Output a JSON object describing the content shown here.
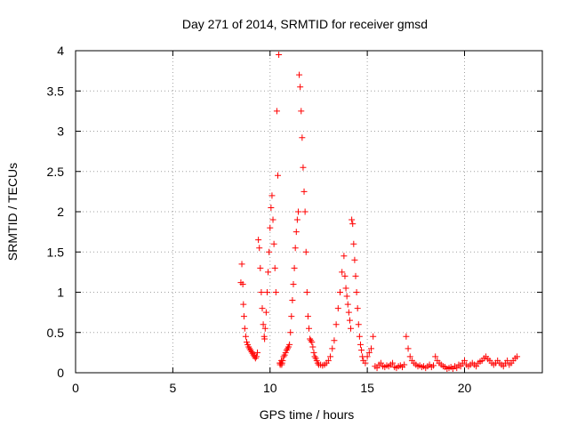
{
  "chart_data": {
    "type": "scatter",
    "title": "Day 271 of 2014, SRMTID for receiver gmsd",
    "xlabel": "GPS time / hours",
    "ylabel": "SRMTID / TECUs",
    "xlim": [
      0,
      24
    ],
    "ylim": [
      0,
      4
    ],
    "xticks": [
      0,
      5,
      10,
      15,
      20
    ],
    "yticks": [
      0,
      0.5,
      1,
      1.5,
      2,
      2.5,
      3,
      3.5,
      4
    ],
    "xtick_labels": [
      "0",
      "5",
      "10",
      "15",
      "20"
    ],
    "ytick_labels": [
      "0",
      "0.5",
      "1",
      "1.5",
      "2",
      "2.5",
      "3",
      "3.5",
      "4"
    ],
    "grid": true,
    "marker": "+",
    "color": "#ff0000",
    "series": [
      {
        "name": "gmsd",
        "x": [
          8.5,
          8.55,
          8.6,
          8.63,
          8.66,
          8.7,
          8.75,
          8.8,
          8.85,
          8.9,
          8.95,
          9.0,
          9.05,
          9.1,
          9.15,
          9.2,
          9.25,
          9.3,
          9.35,
          9.4,
          9.45,
          9.5,
          9.55,
          9.6,
          9.65,
          9.7,
          9.72,
          9.75,
          9.8,
          9.85,
          9.9,
          9.95,
          10.0,
          10.05,
          10.1,
          10.15,
          10.2,
          10.25,
          10.3,
          10.35,
          10.4,
          10.45,
          10.5,
          10.52,
          10.55,
          10.58,
          10.6,
          10.62,
          10.65,
          10.7,
          10.75,
          10.8,
          10.85,
          10.9,
          10.95,
          11.0,
          11.05,
          11.1,
          11.15,
          11.2,
          11.25,
          11.3,
          11.35,
          11.4,
          11.45,
          11.5,
          11.55,
          11.6,
          11.65,
          11.7,
          11.75,
          11.8,
          11.85,
          11.9,
          11.95,
          12.0,
          12.05,
          12.1,
          12.15,
          12.2,
          12.25,
          12.3,
          12.35,
          12.4,
          12.45,
          12.5,
          12.6,
          12.7,
          12.8,
          12.9,
          13.0,
          13.1,
          13.2,
          13.3,
          13.4,
          13.5,
          13.6,
          13.7,
          13.8,
          13.85,
          13.9,
          13.95,
          14.0,
          14.05,
          14.1,
          14.15,
          14.2,
          14.25,
          14.3,
          14.35,
          14.4,
          14.45,
          14.5,
          14.55,
          14.6,
          14.65,
          14.7,
          14.75,
          14.8,
          14.9,
          15.0,
          15.1,
          15.2,
          15.3,
          15.4,
          15.5,
          15.6,
          15.7,
          15.8,
          15.9,
          16.0,
          16.1,
          16.2,
          16.3,
          16.4,
          16.5,
          16.6,
          16.7,
          16.8,
          16.9,
          17.0,
          17.1,
          17.2,
          17.3,
          17.4,
          17.5,
          17.6,
          17.7,
          17.8,
          17.9,
          18.0,
          18.1,
          18.2,
          18.3,
          18.4,
          18.5,
          18.6,
          18.7,
          18.8,
          18.9,
          19.0,
          19.1,
          19.2,
          19.3,
          19.4,
          19.5,
          19.6,
          19.7,
          19.8,
          19.9,
          20.0,
          20.1,
          20.2,
          20.3,
          20.4,
          20.5,
          20.6,
          20.7,
          20.8,
          20.9,
          21.0,
          21.1,
          21.2,
          21.3,
          21.4,
          21.5,
          21.6,
          21.7,
          21.8,
          21.9,
          22.0,
          22.1,
          22.2,
          22.3,
          22.4,
          22.5,
          22.6,
          22.7
        ],
        "y": [
          1.12,
          1.35,
          1.1,
          0.85,
          0.7,
          0.55,
          0.45,
          0.38,
          0.35,
          0.32,
          0.3,
          0.28,
          0.26,
          0.24,
          0.22,
          0.2,
          0.18,
          0.2,
          0.25,
          1.65,
          1.55,
          1.3,
          1.0,
          0.8,
          0.6,
          0.45,
          0.42,
          0.55,
          0.75,
          1.0,
          1.25,
          1.5,
          1.8,
          2.05,
          2.2,
          1.9,
          1.6,
          1.3,
          1.0,
          3.25,
          2.45,
          3.95,
          0.12,
          0.1,
          0.12,
          0.15,
          0.1,
          0.12,
          0.15,
          0.2,
          0.22,
          0.25,
          0.28,
          0.3,
          0.32,
          0.35,
          0.5,
          0.7,
          0.9,
          1.1,
          1.3,
          1.55,
          1.75,
          1.9,
          2.0,
          3.7,
          3.55,
          3.25,
          2.92,
          2.55,
          2.25,
          2.0,
          1.5,
          1.0,
          0.7,
          0.55,
          0.42,
          0.4,
          0.38,
          0.32,
          0.25,
          0.2,
          0.18,
          0.15,
          0.12,
          0.1,
          0.1,
          0.09,
          0.1,
          0.12,
          0.15,
          0.2,
          0.3,
          0.4,
          0.6,
          0.8,
          1.0,
          1.25,
          1.45,
          1.2,
          1.05,
          0.95,
          0.85,
          0.75,
          0.65,
          0.55,
          1.9,
          1.85,
          1.6,
          1.4,
          1.2,
          1.0,
          0.8,
          0.6,
          0.45,
          0.35,
          0.28,
          0.2,
          0.15,
          0.12,
          0.2,
          0.25,
          0.3,
          0.45,
          0.08,
          0.06,
          0.1,
          0.12,
          0.08,
          0.07,
          0.09,
          0.08,
          0.1,
          0.12,
          0.07,
          0.06,
          0.08,
          0.09,
          0.07,
          0.1,
          0.45,
          0.3,
          0.2,
          0.15,
          0.12,
          0.1,
          0.08,
          0.09,
          0.07,
          0.08,
          0.06,
          0.08,
          0.1,
          0.07,
          0.09,
          0.2,
          0.15,
          0.12,
          0.1,
          0.08,
          0.07,
          0.05,
          0.06,
          0.07,
          0.05,
          0.08,
          0.06,
          0.1,
          0.08,
          0.12,
          0.15,
          0.1,
          0.08,
          0.1,
          0.12,
          0.1,
          0.08,
          0.12,
          0.14,
          0.15,
          0.18,
          0.2,
          0.17,
          0.15,
          0.12,
          0.1,
          0.12,
          0.15,
          0.12,
          0.1,
          0.08,
          0.12,
          0.15,
          0.1,
          0.12,
          0.15,
          0.18,
          0.2
        ]
      }
    ]
  }
}
